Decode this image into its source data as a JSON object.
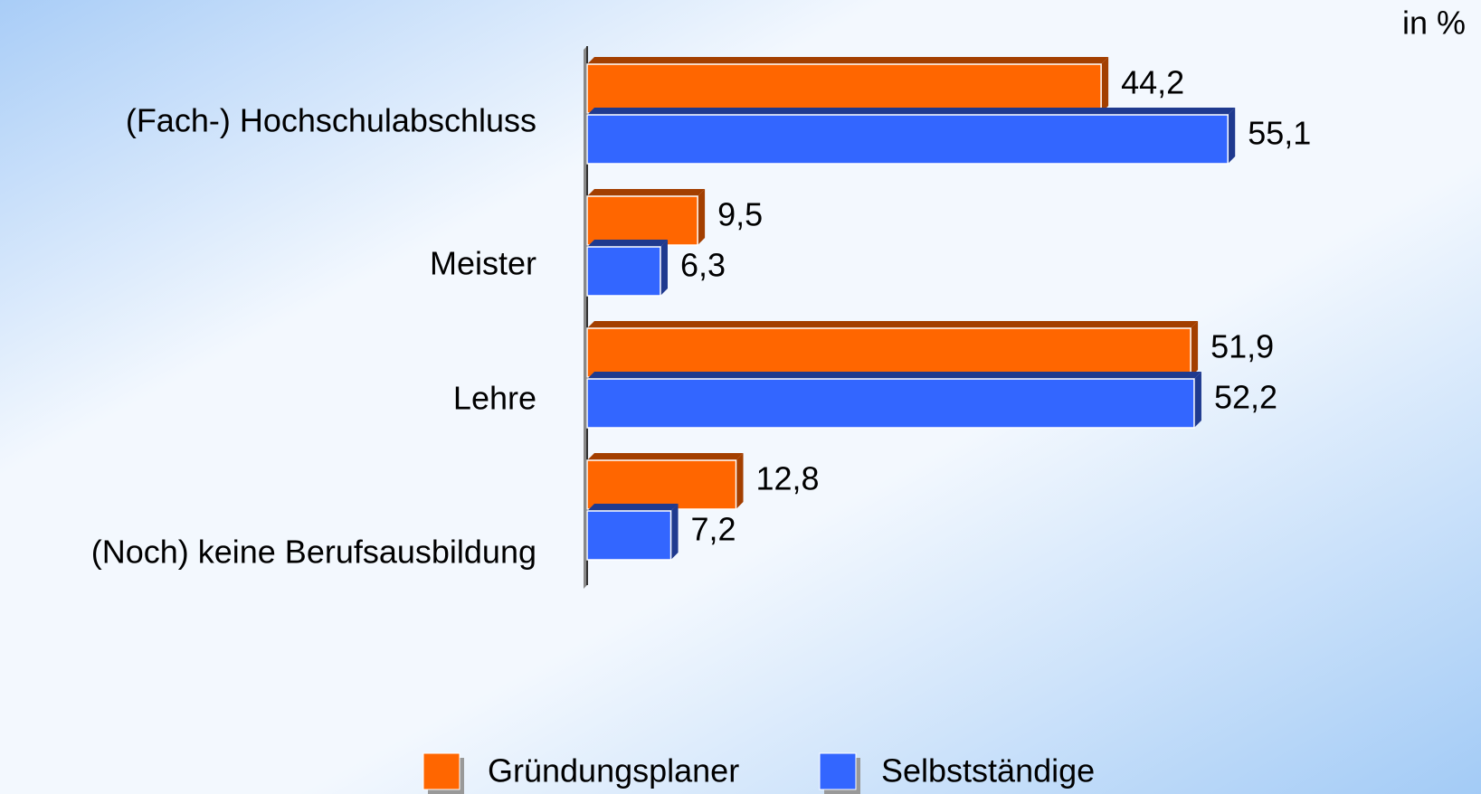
{
  "chart_data": {
    "type": "bar",
    "orientation": "horizontal",
    "unit_label": "in %",
    "categories": [
      "(Fach-) Hochschulabschluss",
      "Meister",
      "Lehre",
      "(Noch) keine Berufsausbildung"
    ],
    "series": [
      {
        "name": "Gründungsplaner",
        "color": "#ff6600",
        "values": [
          44.2,
          9.5,
          51.9,
          12.8
        ],
        "value_labels": [
          "44,2",
          "9,5",
          "51,9",
          "12,8"
        ]
      },
      {
        "name": "Selbstständige",
        "color": "#3366ff",
        "values": [
          55.1,
          6.3,
          52.2,
          7.2
        ],
        "value_labels": [
          "55,1",
          "6,3",
          "52,2",
          "7,2"
        ]
      }
    ],
    "xlim": [
      0,
      75
    ],
    "legend": "bottom"
  }
}
